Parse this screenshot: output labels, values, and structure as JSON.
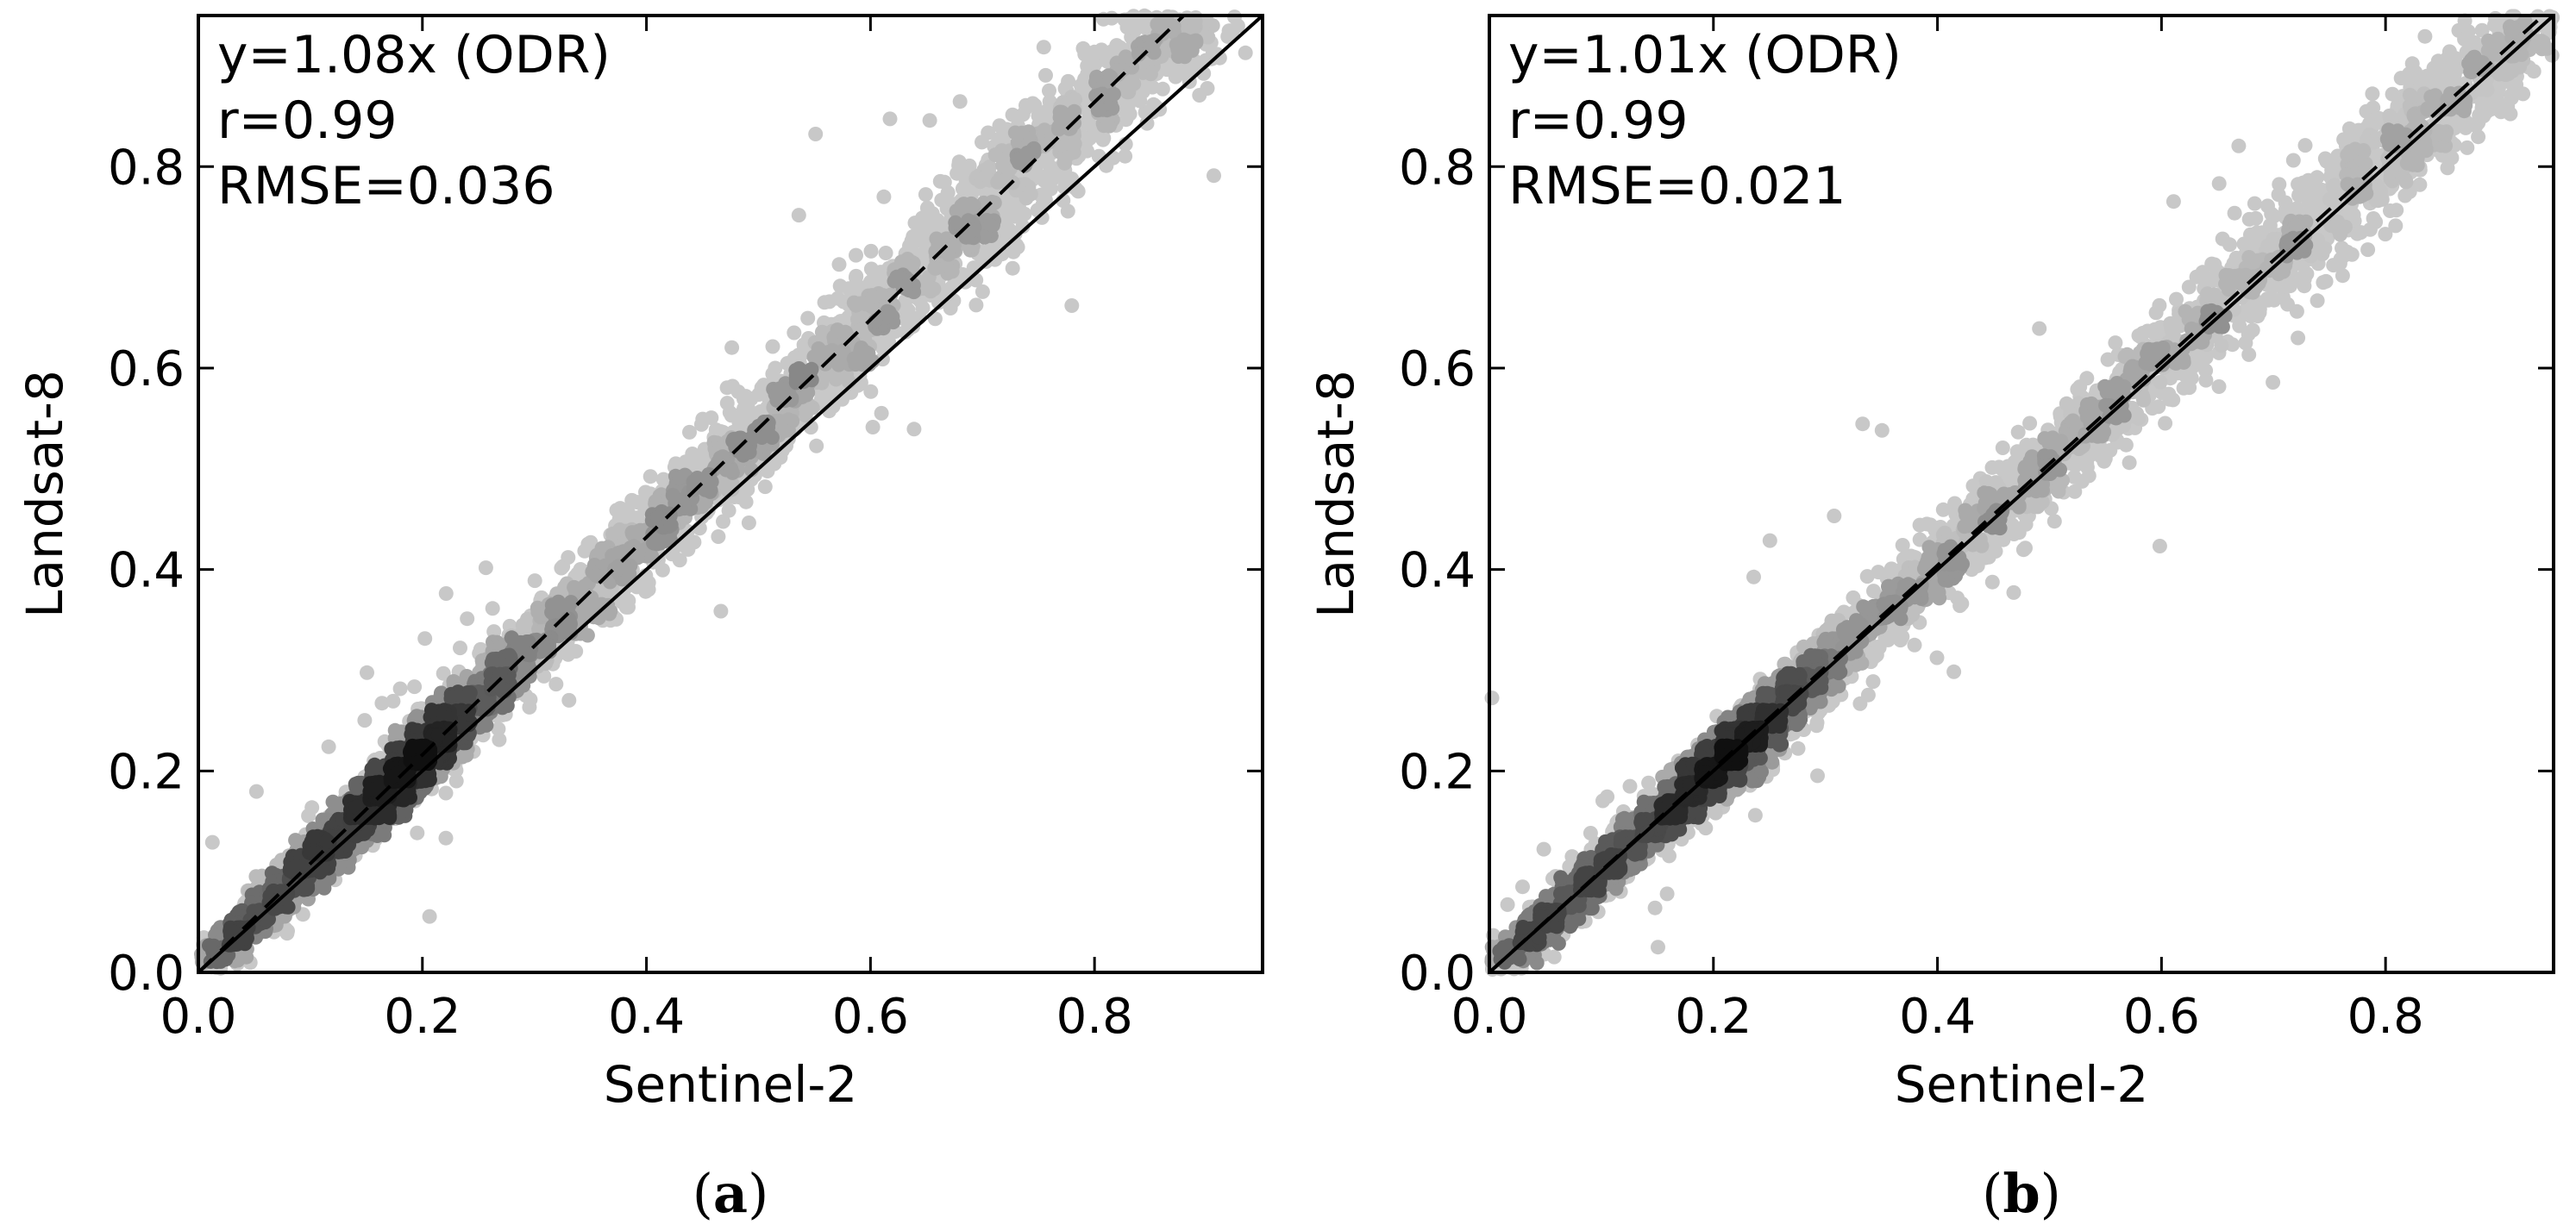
{
  "chart_data": [
    {
      "type": "scatter",
      "subtype": "hexbin-density",
      "panel_label": {
        "open": "(",
        "letter": "a",
        "close": ")"
      },
      "xlabel": "Sentinel-2",
      "ylabel": "Landsat-8",
      "xlim": [
        0.0,
        0.95
      ],
      "ylim": [
        0.0,
        0.95
      ],
      "x_ticks": [
        "0.0",
        "0.2",
        "0.4",
        "0.6",
        "0.8"
      ],
      "y_ticks": [
        "0.0",
        "0.2",
        "0.4",
        "0.6",
        "0.8"
      ],
      "grid": false,
      "annotations": [
        "y=1.08x (ODR)",
        "r=0.99",
        "RMSE=0.036"
      ],
      "lines": [
        {
          "name": "1:1 line",
          "style": "solid",
          "slope": 1.0
        },
        {
          "name": "ODR fit",
          "style": "dashed",
          "slope": 1.08
        }
      ],
      "density": {
        "fit_slope": 1.08,
        "peak_x": 0.19,
        "spread": 0.028,
        "n_points": 5200,
        "max_x": 0.94,
        "seed": 11
      },
      "colors": {
        "sparse": "#c8c8c8",
        "dense": "#101010",
        "line": "#000000"
      }
    },
    {
      "type": "scatter",
      "subtype": "hexbin-density",
      "panel_label": {
        "open": "(",
        "letter": "b",
        "close": ")"
      },
      "xlabel": "Sentinel-2",
      "ylabel": "Landsat-8",
      "xlim": [
        0.0,
        0.95
      ],
      "ylim": [
        0.0,
        0.95
      ],
      "x_ticks": [
        "0.0",
        "0.2",
        "0.4",
        "0.6",
        "0.8"
      ],
      "y_ticks": [
        "0.0",
        "0.2",
        "0.4",
        "0.6",
        "0.8"
      ],
      "grid": false,
      "annotations": [
        "y=1.01x (ODR)",
        "r=0.99",
        "RMSE=0.021"
      ],
      "lines": [
        {
          "name": "1:1 line",
          "style": "solid",
          "slope": 1.0
        },
        {
          "name": "ODR fit",
          "style": "dashed",
          "slope": 1.01
        }
      ],
      "density": {
        "fit_slope": 1.01,
        "peak_x": 0.21,
        "spread": 0.02,
        "n_points": 5200,
        "max_x": 0.95,
        "seed": 23
      },
      "colors": {
        "sparse": "#c8c8c8",
        "dense": "#101010",
        "line": "#000000"
      }
    }
  ]
}
